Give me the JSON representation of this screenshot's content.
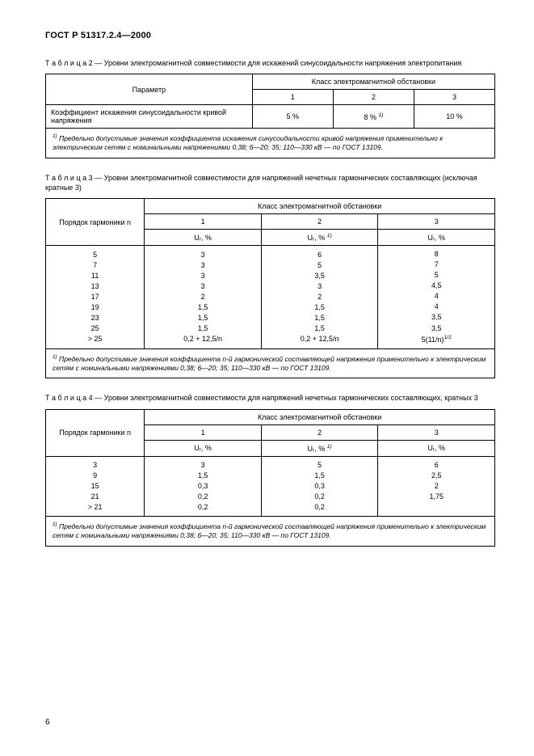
{
  "doc_code": "ГОСТ Р 51317.2.4—2000",
  "page_number": "6",
  "table2": {
    "title_prefix": "Т а б л и ц а   2",
    "title": "— Уровни электромагнитной совместимости для искажений синусоидальности напряжения электропитания",
    "param_header": "Параметр",
    "class_header": "Класс электромагнитной обстановки",
    "class_cols": [
      "1",
      "2",
      "3"
    ],
    "row_label": "Коэффициент искажения синусоидальности кривой напряжения",
    "row_vals": [
      "5 %",
      "8 % ",
      "10 %"
    ],
    "row_val2_sup": "1)",
    "note_sup": "1)",
    "note": "Предельно допустимые значения коэффициента искажения синусоидальности кривой напряжения применительно к электрическим сетям с номинальными напряжениями 0,38; 6—20; 35; 110—330 кВ — по ГОСТ 13109."
  },
  "table3": {
    "title_prefix": "Т а б л и ц а   3",
    "title": "— Уровни электромагнитной совместимости для напряжений нечетных гармонических составляющих (исключая кратные 3)",
    "order_header": "Порядок гармоники n",
    "class_header": "Класс электромагнитной обстановки",
    "class_cols": [
      "1",
      "2",
      "3"
    ],
    "sub_headers": [
      "Uᵣ, %",
      "Uᵣ, % ",
      "Uᵣ, %"
    ],
    "sub_header2_sup": "1)",
    "orders": [
      "5",
      "7",
      "11",
      "13",
      "17",
      "19",
      "23",
      "25",
      "> 25"
    ],
    "col1": [
      "3",
      "3",
      "3",
      "3",
      "2",
      "1,5",
      "1,5",
      "1,5",
      "0,2 + 12,5/n"
    ],
    "col2": [
      "6",
      "5",
      "3,5",
      "3",
      "2",
      "1,5",
      "1,5",
      "1,5",
      "0,2 + 12,5/n"
    ],
    "col3": [
      "8",
      "7",
      "5",
      "4,5",
      "4",
      "4",
      "3,5",
      "3,5",
      "5(11/n)"
    ],
    "col3_last_sup": "1/2",
    "note_sup": "1)",
    "note": "Предельно допустимые значения коэффициента n-й гармонической составляющей напряжения применительно к электрическим сетям с номинальными напряжениями 0,38; 6—20; 35; 110—330 кВ — по ГОСТ 13109."
  },
  "table4": {
    "title_prefix": "Т а б л и ц а   4",
    "title": "— Уровни электромагнитной совместимости для напряжений нечетных гармонических составляющих, кратных 3",
    "order_header": "Порядок гармоники n",
    "class_header": "Класс электромагнитной обстановки",
    "class_cols": [
      "1",
      "2",
      "3"
    ],
    "sub_headers": [
      "Uᵣ, %",
      "Uᵣ, % ",
      "Uᵣ, %"
    ],
    "sub_header2_sup": "1)",
    "orders": [
      "3",
      "9",
      "15",
      "21",
      "> 21"
    ],
    "col1": [
      "3",
      "1,5",
      "0,3",
      "0,2",
      "0,2"
    ],
    "col2": [
      "5",
      "1,5",
      "0,3",
      "0,2",
      "0,2"
    ],
    "col3": [
      "6",
      "2,5",
      "2",
      "1,75",
      ""
    ],
    "note_sup": "1)",
    "note": "Предельно допустимые значения коэффициента n-й гармонической составляющей напряжения применительно к электрическим сетям с номинальными напряжениями 0,38; 6—20; 35; 110—330 кВ — по ГОСТ 13109."
  }
}
